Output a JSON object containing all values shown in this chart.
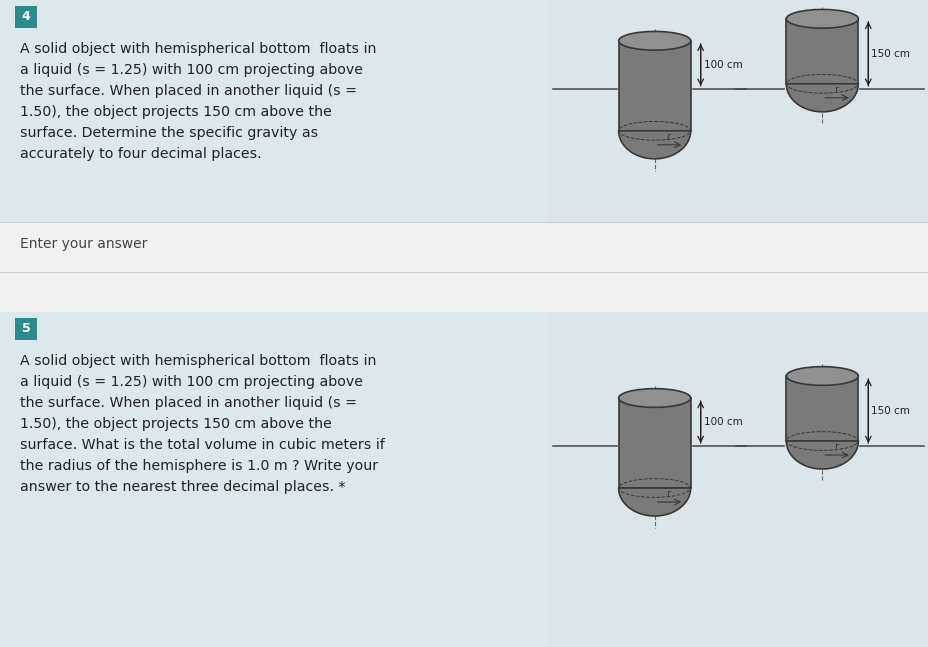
{
  "bg_color": "#f2f2f2",
  "panel_bg": "#dde8ed",
  "teal_color": "#2e8b8b",
  "text_color": "#222222",
  "dim_text_color": "#555555",
  "separator_color": "#cccccc",
  "question4": {
    "number": "4",
    "text_lines": [
      "A solid object with hemispherical bottom  floats in",
      "a liquid (s = 1.25) with 100 cm projecting above",
      "the surface. When placed in another liquid (s =",
      "1.50), the object projects 150 cm above the",
      "surface. Determine the specific gravity as",
      "accurately to four decimal places."
    ]
  },
  "question5": {
    "number": "5",
    "text_lines": [
      "A solid object with hemispherical bottom  floats in",
      "a liquid (s = 1.25) with 100 cm projecting above",
      "the surface. When placed in another liquid (s =",
      "1.50), the object projects 150 cm above the",
      "surface. What is the total volume in cubic meters if",
      "the radius of the hemisphere is 1.0 m ? Write your",
      "answer to the nearest three decimal places. *"
    ]
  },
  "enter_answer": "Enter your answer",
  "label_100": "100 cm",
  "label_150": "150 cm",
  "cyl_fill": "#7a7a7a",
  "cyl_edge": "#383838",
  "cyl_top_fill": "#909090",
  "hemi_fill": "#707070"
}
